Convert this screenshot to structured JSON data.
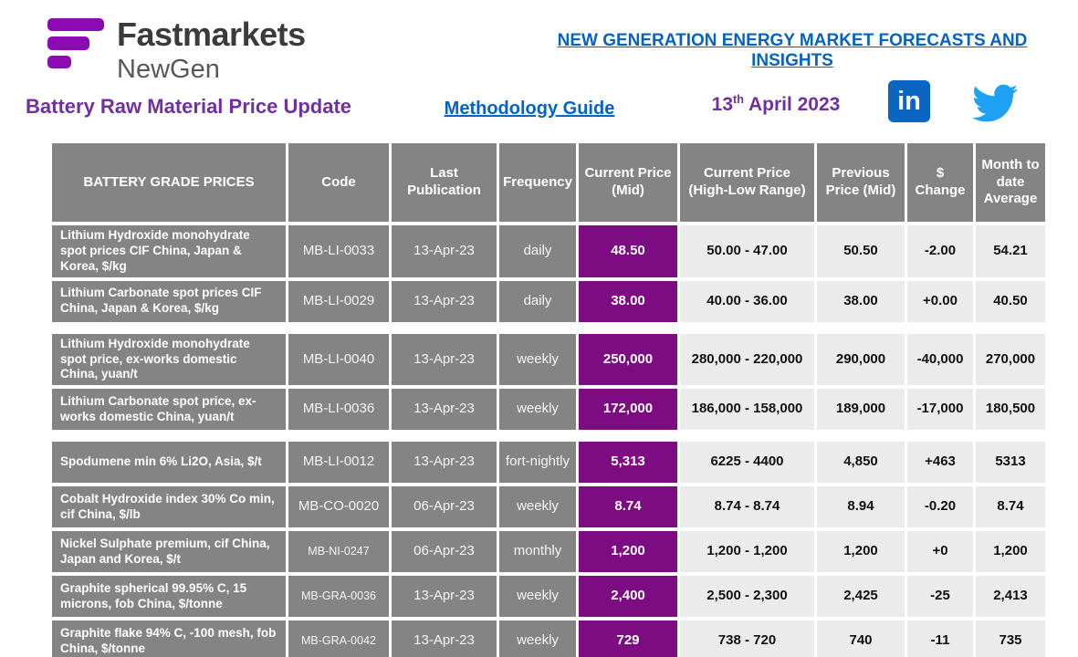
{
  "brand": {
    "name": "Fastmarkets",
    "sub": "NewGen"
  },
  "header": {
    "top_link": "NEW GENERATION ENERGY MARKET FORECASTS AND INSIGHTS",
    "title": "Battery Raw Material Price Update",
    "methodology_link": "Methodology Guide",
    "date": {
      "day": "13",
      "suffix": "th",
      "rest": " April 2023"
    },
    "linkedin_label": "in"
  },
  "colors": {
    "logo_purple": "#8C0AB4",
    "title_purple": "#7030A0",
    "link_blue": "#0563C1",
    "table_header_gray": "#848484",
    "value_cell_gray": "#EBEBEB",
    "mid_price_purple": "#7D0C82",
    "linkedin_blue": "#0A66C2",
    "twitter_blue": "#1DA1F2"
  },
  "icons": [
    "fastmarkets-logo-icon",
    "linkedin-icon",
    "twitter-icon"
  ],
  "table": {
    "columns": [
      "BATTERY GRADE PRICES",
      "Code",
      "Last Publication",
      "Frequency",
      "Current Price (Mid)",
      "Current Price (High-Low Range)",
      "Previous Price (Mid)",
      "$ Change",
      "Month to date Average"
    ],
    "groups": [
      {
        "rows": [
          {
            "name": "Lithium Hydroxide monohydrate spot prices CIF China, Japan & Korea, $/kg",
            "code": "MB-LI-0033",
            "last_publication": "13-Apr-23",
            "frequency": "daily",
            "mid": "48.50",
            "range": "50.00 - 47.00",
            "previous": "50.50",
            "change": "-2.00",
            "mtd_average": "54.21"
          },
          {
            "name": "Lithium Carbonate spot prices CIF China, Japan & Korea, $/kg",
            "code": "MB-LI-0029",
            "last_publication": "13-Apr-23",
            "frequency": "daily",
            "mid": "38.00",
            "range": "40.00 - 36.00",
            "previous": "38.00",
            "change": "+0.00",
            "mtd_average": "40.50"
          }
        ]
      },
      {
        "rows": [
          {
            "name": "Lithium Hydroxide monohydrate spot price, ex-works domestic China, yuan/t",
            "code": "MB-LI-0040",
            "last_publication": "13-Apr-23",
            "frequency": "weekly",
            "mid": "250,000",
            "range": "280,000 - 220,000",
            "previous": "290,000",
            "change": "-40,000",
            "mtd_average": "270,000"
          },
          {
            "name": "Lithium Carbonate spot price, ex-works domestic China, yuan/t",
            "code": "MB-LI-0036",
            "last_publication": "13-Apr-23",
            "frequency": "weekly",
            "mid": "172,000",
            "range": "186,000 - 158,000",
            "previous": "189,000",
            "change": "-17,000",
            "mtd_average": "180,500"
          }
        ]
      },
      {
        "rows": [
          {
            "name": "Spodumene min 6% Li2O, Asia, $/t",
            "code": "MB-LI-0012",
            "last_publication": "13-Apr-23",
            "frequency": "fort-nightly",
            "mid": "5,313",
            "range": "6225 - 4400",
            "previous": "4,850",
            "change": "+463",
            "mtd_average": "5313"
          },
          {
            "name": "Cobalt Hydroxide index 30% Co min, cif China, $/lb",
            "code": "MB-CO-0020",
            "last_publication": "06-Apr-23",
            "frequency": "weekly",
            "mid": "8.74",
            "range": "8.74 - 8.74",
            "previous": "8.94",
            "change": "-0.20",
            "mtd_average": "8.74"
          },
          {
            "name": "Nickel Sulphate premium, cif China, Japan and Korea, $/t",
            "code": "MB-NI-0247",
            "code_small": true,
            "last_publication": "06-Apr-23",
            "frequency": "monthly",
            "mid": "1,200",
            "range": "1,200 - 1,200",
            "previous": "1,200",
            "change": "+0",
            "mtd_average": "1,200"
          },
          {
            "name": "Graphite spherical 99.95% C, 15 microns, fob China, $/tonne",
            "code": "MB-GRA-0036",
            "code_small": true,
            "last_publication": "13-Apr-23",
            "frequency": "weekly",
            "mid": "2,400",
            "range": "2,500 - 2,300",
            "previous": "2,425",
            "change": "-25",
            "mtd_average": "2,413"
          },
          {
            "name": "Graphite flake 94% C, -100 mesh, fob China, $/tonne",
            "code": "MB-GRA-0042",
            "code_small": true,
            "last_publication": "13-Apr-23",
            "frequency": "weekly",
            "mid": "729",
            "range": "738 - 720",
            "previous": "740",
            "change": "-11",
            "mtd_average": "735"
          }
        ]
      }
    ]
  }
}
